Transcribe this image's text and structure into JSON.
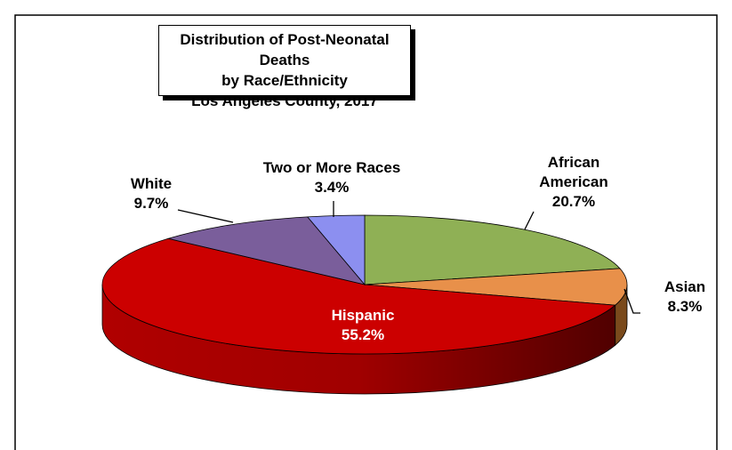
{
  "chart_data": {
    "type": "pie",
    "title": [
      "Distribution of Post-Neonatal Deaths",
      "by Race/Ethnicity",
      "Los Angeles County, 2017"
    ],
    "categories": [
      "African American",
      "Asian",
      "Hispanic",
      "White",
      "Two or More Races"
    ],
    "values": [
      20.7,
      8.3,
      55.2,
      9.7,
      3.4
    ],
    "value_labels": [
      "20.7%",
      "8.3%",
      "55.2%",
      "9.7%",
      "3.4%"
    ],
    "colors": [
      "#8fb055",
      "#e8904a",
      "#cc0000",
      "#7a5e9b",
      "#8c8ff0"
    ]
  }
}
